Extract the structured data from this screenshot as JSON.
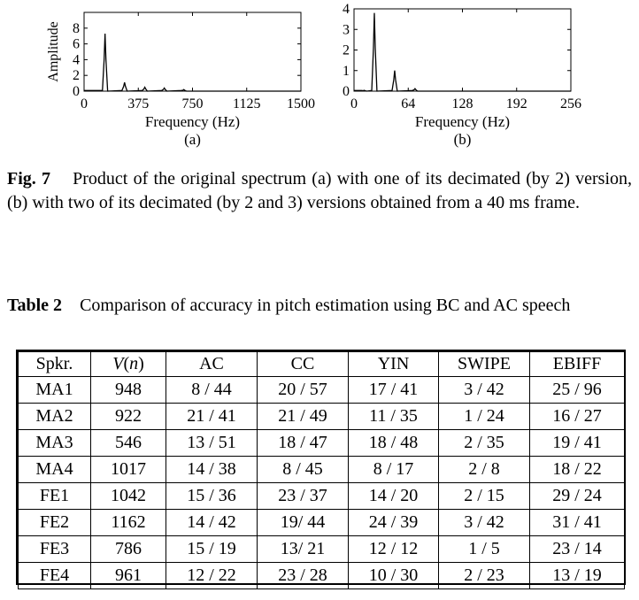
{
  "chart_data": [
    {
      "type": "line",
      "ylabel": "Amplitude",
      "xlabel": "Frequency (Hz)",
      "sublabel": "(a)",
      "xlim": [
        0,
        1500
      ],
      "ylim": [
        0,
        10
      ],
      "xticks": [
        "0",
        "375",
        "750",
        "1125",
        "1500"
      ],
      "yticks": [
        "0",
        "2",
        "4",
        "6",
        "8"
      ],
      "peaks": [
        {
          "x": 145,
          "y": 7.3
        },
        {
          "x": 280,
          "y": 1.1
        },
        {
          "x": 420,
          "y": 0.5
        },
        {
          "x": 555,
          "y": 0.4
        },
        {
          "x": 690,
          "y": 0.2
        }
      ]
    },
    {
      "type": "line",
      "ylabel": "",
      "xlabel": "Frequency (Hz)",
      "sublabel": "(b)",
      "xlim": [
        0,
        256
      ],
      "ylim": [
        0,
        4
      ],
      "xticks": [
        "0",
        "64",
        "128",
        "192",
        "256"
      ],
      "yticks": [
        "0",
        "1",
        "2",
        "3",
        "4"
      ],
      "peaks": [
        {
          "x": 24,
          "y": 3.8
        },
        {
          "x": 48,
          "y": 1.0
        },
        {
          "x": 72,
          "y": 0.12
        },
        {
          "x": 12,
          "y": 0.04
        }
      ]
    }
  ],
  "figure": {
    "label": "Fig. 7",
    "text": "Product of the original spectrum (a) with one of its decimated (by 2) version, (b) with two of its decimated (by 2 and 3) versions obtained from a 40 ms frame."
  },
  "table": {
    "label": "Table 2",
    "title": "Comparison of accuracy in pitch estimation using BC and AC speech",
    "headers": [
      "Spkr.",
      "V(n)",
      "AC",
      "CC",
      "YIN",
      "SWIPE",
      "EBIFF"
    ],
    "rows": [
      [
        "MA1",
        "948",
        "8 / 44",
        "20 / 57",
        "17 / 41",
        "3 / 42",
        "25 / 96"
      ],
      [
        "MA2",
        "922",
        "21 / 41",
        "21 / 49",
        "11 / 35",
        "1 / 24",
        "16 / 27"
      ],
      [
        "MA3",
        "546",
        "13 / 51",
        "18 / 47",
        "18 / 48",
        "2 / 35",
        "19 / 41"
      ],
      [
        "MA4",
        "1017",
        "14 / 38",
        "8 / 45",
        "8 / 17",
        "2 / 8",
        "18 / 22"
      ],
      [
        "FE1",
        "1042",
        "15 / 36",
        "23 / 37",
        "14 / 20",
        "2 / 15",
        "29 / 24"
      ],
      [
        "FE2",
        "1162",
        "14 / 42",
        "19/ 44",
        "24 / 39",
        "3 / 42",
        "31 / 41"
      ],
      [
        "FE3",
        "786",
        "15 / 19",
        "13/ 21",
        "12 / 12",
        "1 / 5",
        "23 / 14"
      ],
      [
        "FE4",
        "961",
        "12 / 22",
        "23 / 28",
        "10 / 30",
        "2 / 23",
        "13 / 19"
      ]
    ]
  }
}
